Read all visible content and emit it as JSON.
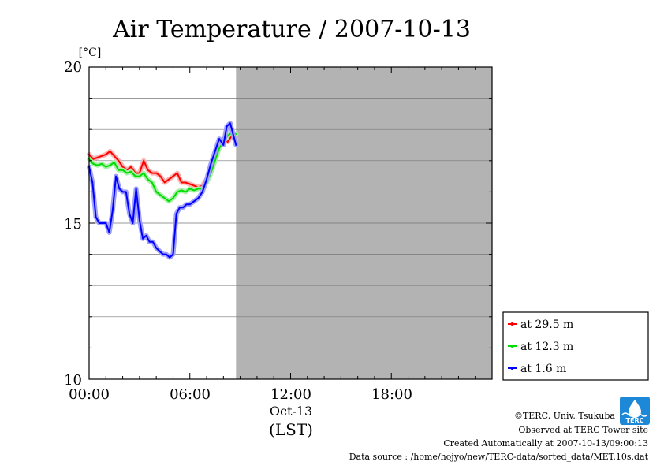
{
  "chart_data": {
    "type": "line",
    "title": "Air Temperature / 2007-10-13",
    "ylabel": "[°C]",
    "xlabel": "(LST)",
    "date_label": "Oct-13",
    "x_unit": "hours",
    "xlim": [
      0,
      24
    ],
    "ylim": [
      10,
      20
    ],
    "yticks": [
      "20",
      "15",
      "10"
    ],
    "xticks": [
      "00:00",
      "06:00",
      "12:00",
      "18:00"
    ],
    "grid": true,
    "missing_region": {
      "from": 8.75,
      "to": 24,
      "color": "#b3b3b3"
    },
    "legend_position": "bottom-right outside plot",
    "series": [
      {
        "name": "at 29.5 m",
        "color": "#ff0000",
        "x": [
          0.0,
          0.25,
          0.5,
          0.75,
          1.0,
          1.25,
          1.5,
          1.75,
          2.0,
          2.25,
          2.5,
          2.75,
          3.0,
          3.25,
          3.5,
          3.75,
          4.0,
          4.25,
          4.5,
          4.75,
          5.0,
          5.25,
          5.5,
          5.75,
          6.0,
          6.25,
          6.5,
          6.75,
          7.0,
          7.25,
          7.5,
          7.75,
          8.0,
          8.25,
          8.5,
          8.75
        ],
        "values": [
          17.2,
          17.05,
          17.1,
          17.15,
          17.2,
          17.3,
          17.15,
          17.0,
          16.8,
          16.7,
          16.8,
          16.6,
          16.6,
          17.0,
          16.7,
          16.6,
          16.6,
          16.5,
          16.3,
          16.4,
          16.5,
          16.6,
          16.3,
          16.3,
          16.25,
          16.2,
          16.15,
          16.2,
          16.4,
          16.7,
          17.2,
          17.6,
          17.7,
          17.6,
          17.8,
          17.7
        ]
      },
      {
        "name": "at 12.3 m",
        "color": "#00dd00",
        "x": [
          0.0,
          0.25,
          0.5,
          0.75,
          1.0,
          1.25,
          1.5,
          1.75,
          2.0,
          2.25,
          2.5,
          2.75,
          3.0,
          3.25,
          3.5,
          3.75,
          4.0,
          4.25,
          4.5,
          4.75,
          5.0,
          5.25,
          5.5,
          5.75,
          6.0,
          6.25,
          6.5,
          6.75,
          7.0,
          7.25,
          7.5,
          7.75,
          8.0,
          8.25,
          8.5,
          8.75
        ],
        "values": [
          17.05,
          16.9,
          16.85,
          16.9,
          16.8,
          16.85,
          16.95,
          16.7,
          16.7,
          16.6,
          16.65,
          16.5,
          16.5,
          16.6,
          16.4,
          16.3,
          16.0,
          15.9,
          15.8,
          15.7,
          15.8,
          16.0,
          16.05,
          16.0,
          16.1,
          16.05,
          16.1,
          16.1,
          16.3,
          16.6,
          17.0,
          17.4,
          17.6,
          17.8,
          17.9,
          17.85
        ]
      },
      {
        "name": "at 1.6 m",
        "color": "#0000ff",
        "x": [
          0.0,
          0.2,
          0.4,
          0.6,
          0.8,
          1.0,
          1.2,
          1.4,
          1.6,
          1.8,
          2.0,
          2.2,
          2.4,
          2.6,
          2.8,
          3.0,
          3.2,
          3.4,
          3.6,
          3.8,
          4.0,
          4.2,
          4.4,
          4.6,
          4.8,
          5.0,
          5.2,
          5.4,
          5.6,
          5.8,
          6.0,
          6.25,
          6.5,
          6.75,
          7.0,
          7.25,
          7.5,
          7.75,
          8.0,
          8.2,
          8.4,
          8.6,
          8.75
        ],
        "values": [
          16.8,
          16.3,
          15.2,
          15.0,
          15.0,
          15.0,
          14.7,
          15.4,
          16.5,
          16.1,
          16.0,
          16.0,
          15.3,
          15.0,
          16.1,
          15.1,
          14.5,
          14.6,
          14.4,
          14.4,
          14.2,
          14.1,
          14.0,
          14.0,
          13.9,
          14.0,
          15.3,
          15.5,
          15.5,
          15.6,
          15.6,
          15.7,
          15.8,
          16.0,
          16.4,
          16.9,
          17.3,
          17.7,
          17.5,
          18.1,
          18.2,
          17.8,
          17.5
        ]
      }
    ]
  },
  "credits": {
    "copyright": "©TERC, Univ. Tsukuba",
    "observed": "Observed at TERC Tower site",
    "created": "Created Automatically at 2007-10-13/09:00:13",
    "source": "Data source : /home/hojyo/new/TERC-data/sorted_data/MET.10s.dat"
  },
  "logo": {
    "text": "TERC",
    "color": "#1e88d8"
  }
}
